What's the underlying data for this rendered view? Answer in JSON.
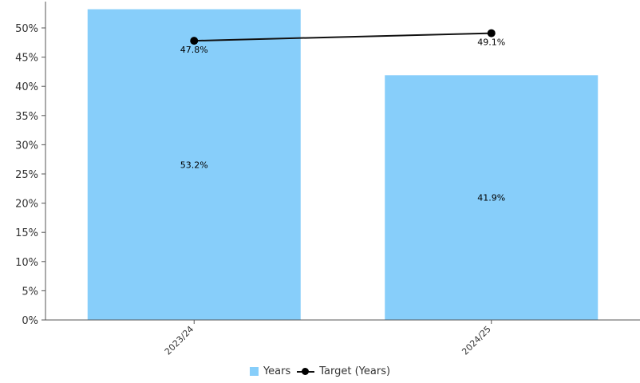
{
  "colors": {
    "bar": "#87CEFA",
    "line": "#111111",
    "marker": "#000000",
    "axis": "#555555",
    "text": "#333333"
  },
  "chart_data": {
    "type": "bar",
    "categories": [
      "2023/24",
      "2024/25"
    ],
    "series": [
      {
        "name": "Years",
        "type": "bar",
        "values": [
          53.2,
          41.9
        ],
        "labels": [
          "53.2%",
          "41.9%"
        ]
      },
      {
        "name": "Target (Years)",
        "type": "line",
        "values": [
          47.8,
          49.1
        ],
        "labels": [
          "47.8%",
          "49.1%"
        ]
      }
    ],
    "ylim": [
      0,
      54
    ],
    "yticks": [
      0,
      5,
      10,
      15,
      20,
      25,
      30,
      35,
      40,
      45,
      50
    ],
    "ytick_labels": [
      "0%",
      "5%",
      "10%",
      "15%",
      "20%",
      "25%",
      "30%",
      "35%",
      "40%",
      "45%",
      "50%"
    ],
    "grid": false,
    "legend_position": "bottom"
  }
}
